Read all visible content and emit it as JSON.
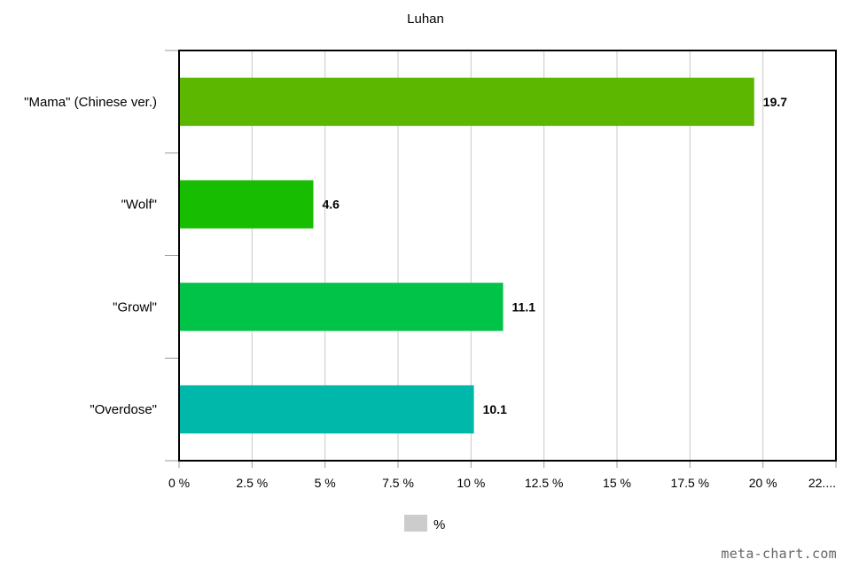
{
  "chart_data": {
    "type": "bar",
    "orientation": "horizontal",
    "title": "Luhan",
    "categories": [
      "\"Mama\" (Chinese ver.)",
      "\"Wolf\"",
      "\"Growl\"",
      "\"Overdose\""
    ],
    "series": [
      {
        "name": "%",
        "values": [
          19.7,
          4.6,
          11.1,
          10.1
        ]
      }
    ],
    "data_labels": [
      "19.7",
      "4.6",
      "11.1",
      "10.1"
    ],
    "bar_colors": [
      "#5cb700",
      "#17bd00",
      "#00c347",
      "#00b8aa"
    ],
    "legend_color": "#cccccc",
    "xlim": [
      0,
      22.5
    ],
    "x_ticks": [
      0,
      2.5,
      5,
      7.5,
      10,
      12.5,
      15,
      17.5,
      20,
      22.5
    ],
    "x_tick_labels": [
      "0 %",
      "2.5 %",
      "5 %",
      "7.5 %",
      "10 %",
      "12.5 %",
      "15 %",
      "17.5 %",
      "20 %",
      "22...."
    ],
    "grid": true,
    "legend_position": "bottom"
  },
  "watermark": "meta-chart.com"
}
